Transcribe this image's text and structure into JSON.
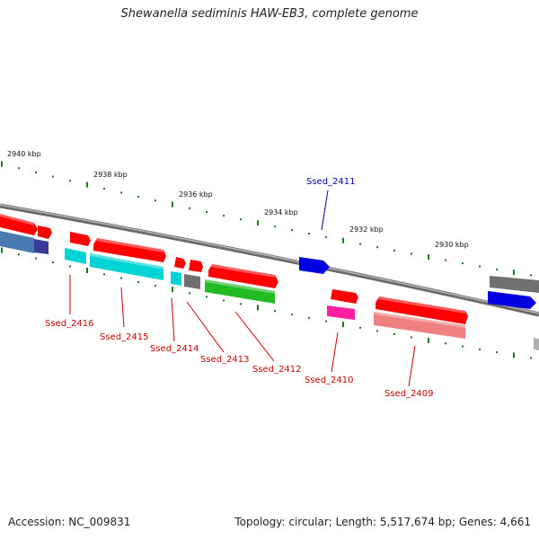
{
  "title": "Shewanella sediminis HAW-EB3, complete genome",
  "footer": {
    "accession": "Accession: NC_009831",
    "summary": "Topology: circular; Length: 5,517,674 bp; Genes: 4,661"
  },
  "scale_labels": [
    "2940 kbp",
    "2938 kbp",
    "2936 kbp",
    "2934 kbp",
    "2932 kbp",
    "2930 kbp"
  ],
  "locus_labels": [
    {
      "text": "Ssed_2411",
      "color": "#0000aa"
    },
    {
      "text": "Ssed_2416",
      "color": "#cc0000"
    },
    {
      "text": "Ssed_2415",
      "color": "#cc0000"
    },
    {
      "text": "Ssed_2414",
      "color": "#cc0000"
    },
    {
      "text": "Ssed_2413",
      "color": "#cc0000"
    },
    {
      "text": "Ssed_2412",
      "color": "#cc0000"
    },
    {
      "text": "Ssed_2410",
      "color": "#cc0000"
    },
    {
      "text": "Ssed_2409",
      "color": "#cc0000"
    }
  ],
  "colors": {
    "backbone": "#808080",
    "tick": "#1a7a1a",
    "red": "#ff0000",
    "blue": "#0000e0",
    "cyan": "#00d4d4",
    "green": "#22bb22",
    "gray": "#707070",
    "magenta": "#ff1fa0",
    "pink": "#f08080",
    "steel": "#4a78b0",
    "indigo": "#3a3a9a"
  }
}
